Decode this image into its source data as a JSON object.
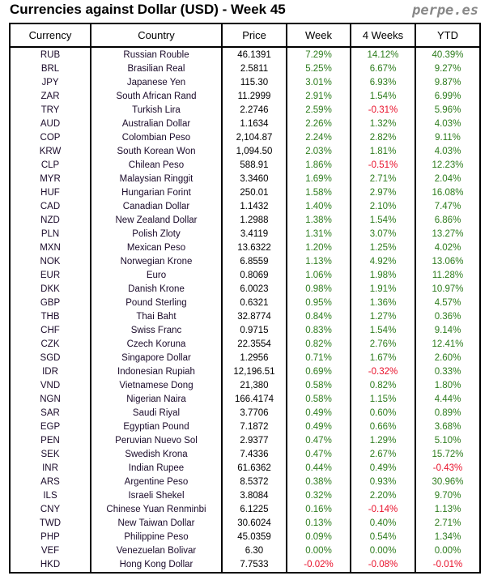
{
  "header": {
    "title": "Currencies against Dollar (USD) - Week 45",
    "brand": "perpe.es"
  },
  "table": {
    "columns": [
      "Currency",
      "Country",
      "Price",
      "Week",
      "4 Weeks",
      "YTD"
    ],
    "colors": {
      "positive": "#2e7d1e",
      "negative": "#e8102a"
    },
    "rows": [
      [
        "RUB",
        "Russian Rouble",
        "46.1391",
        "7.29%",
        "14.12%",
        "40.39%"
      ],
      [
        "BRL",
        "Brasilian Real",
        "2.5811",
        "5.25%",
        "6.67%",
        "9.27%"
      ],
      [
        "JPY",
        "Japanese Yen",
        "115.30",
        "3.01%",
        "6.93%",
        "9.87%"
      ],
      [
        "ZAR",
        "South African Rand",
        "11.2999",
        "2.91%",
        "1.54%",
        "6.99%"
      ],
      [
        "TRY",
        "Turkish Lira",
        "2.2746",
        "2.59%",
        "-0.31%",
        "5.96%"
      ],
      [
        "AUD",
        "Australian Dollar",
        "1.1634",
        "2.26%",
        "1.32%",
        "4.03%"
      ],
      [
        "COP",
        "Colombian Peso",
        "2,104.87",
        "2.24%",
        "2.82%",
        "9.11%"
      ],
      [
        "KRW",
        "South Korean Won",
        "1,094.50",
        "2.03%",
        "1.81%",
        "4.03%"
      ],
      [
        "CLP",
        "Chilean Peso",
        "588.91",
        "1.86%",
        "-0.51%",
        "12.23%"
      ],
      [
        "MYR",
        "Malaysian Ringgit",
        "3.3460",
        "1.69%",
        "2.71%",
        "2.04%"
      ],
      [
        "HUF",
        "Hungarian Forint",
        "250.01",
        "1.58%",
        "2.97%",
        "16.08%"
      ],
      [
        "CAD",
        "Canadian Dollar",
        "1.1432",
        "1.40%",
        "2.10%",
        "7.47%"
      ],
      [
        "NZD",
        "New Zealand Dollar",
        "1.2988",
        "1.38%",
        "1.54%",
        "6.86%"
      ],
      [
        "PLN",
        "Polish Zloty",
        "3.4119",
        "1.31%",
        "3.07%",
        "13.27%"
      ],
      [
        "MXN",
        "Mexican Peso",
        "13.6322",
        "1.20%",
        "1.25%",
        "4.02%"
      ],
      [
        "NOK",
        "Norwegian Krone",
        "6.8559",
        "1.13%",
        "4.92%",
        "13.06%"
      ],
      [
        "EUR",
        "Euro",
        "0.8069",
        "1.06%",
        "1.98%",
        "11.28%"
      ],
      [
        "DKK",
        "Danish Krone",
        "6.0023",
        "0.98%",
        "1.91%",
        "10.97%"
      ],
      [
        "GBP",
        "Pound Sterling",
        "0.6321",
        "0.95%",
        "1.36%",
        "4.57%"
      ],
      [
        "THB",
        "Thai Baht",
        "32.8774",
        "0.84%",
        "1.27%",
        "0.36%"
      ],
      [
        "CHF",
        "Swiss Franc",
        "0.9715",
        "0.83%",
        "1.54%",
        "9.14%"
      ],
      [
        "CZK",
        "Czech Koruna",
        "22.3554",
        "0.82%",
        "2.76%",
        "12.41%"
      ],
      [
        "SGD",
        "Singapore Dollar",
        "1.2956",
        "0.71%",
        "1.67%",
        "2.60%"
      ],
      [
        "IDR",
        "Indonesian Rupiah",
        "12,196.51",
        "0.69%",
        "-0.32%",
        "0.33%"
      ],
      [
        "VND",
        "Vietnamese Dong",
        "21,380",
        "0.58%",
        "0.82%",
        "1.80%"
      ],
      [
        "NGN",
        "Nigerian Naira",
        "166.4174",
        "0.58%",
        "1.15%",
        "4.44%"
      ],
      [
        "SAR",
        "Saudi Riyal",
        "3.7706",
        "0.49%",
        "0.60%",
        "0.89%"
      ],
      [
        "EGP",
        "Egyptian Pound",
        "7.1872",
        "0.49%",
        "0.66%",
        "3.68%"
      ],
      [
        "PEN",
        "Peruvian Nuevo Sol",
        "2.9377",
        "0.47%",
        "1.29%",
        "5.10%"
      ],
      [
        "SEK",
        "Swedish Krona",
        "7.4336",
        "0.47%",
        "2.67%",
        "15.72%"
      ],
      [
        "INR",
        "Indian Rupee",
        "61.6362",
        "0.44%",
        "0.49%",
        "-0.43%"
      ],
      [
        "ARS",
        "Argentine Peso",
        "8.5372",
        "0.38%",
        "0.93%",
        "30.96%"
      ],
      [
        "ILS",
        "Israeli Shekel",
        "3.8084",
        "0.32%",
        "2.20%",
        "9.70%"
      ],
      [
        "CNY",
        "Chinese Yuan Renminbi",
        "6.1225",
        "0.16%",
        "-0.14%",
        "1.13%"
      ],
      [
        "TWD",
        "New Taiwan Dollar",
        "30.6024",
        "0.13%",
        "0.40%",
        "2.71%"
      ],
      [
        "PHP",
        "Philippine Peso",
        "45.0359",
        "0.09%",
        "0.54%",
        "1.34%"
      ],
      [
        "VEF",
        "Venezuelan Bolivar",
        "6.30",
        "0.00%",
        "0.00%",
        "0.00%"
      ],
      [
        "HKD",
        "Hong Kong Dollar",
        "7.7533",
        "-0.02%",
        "-0.08%",
        "-0.01%"
      ]
    ]
  }
}
